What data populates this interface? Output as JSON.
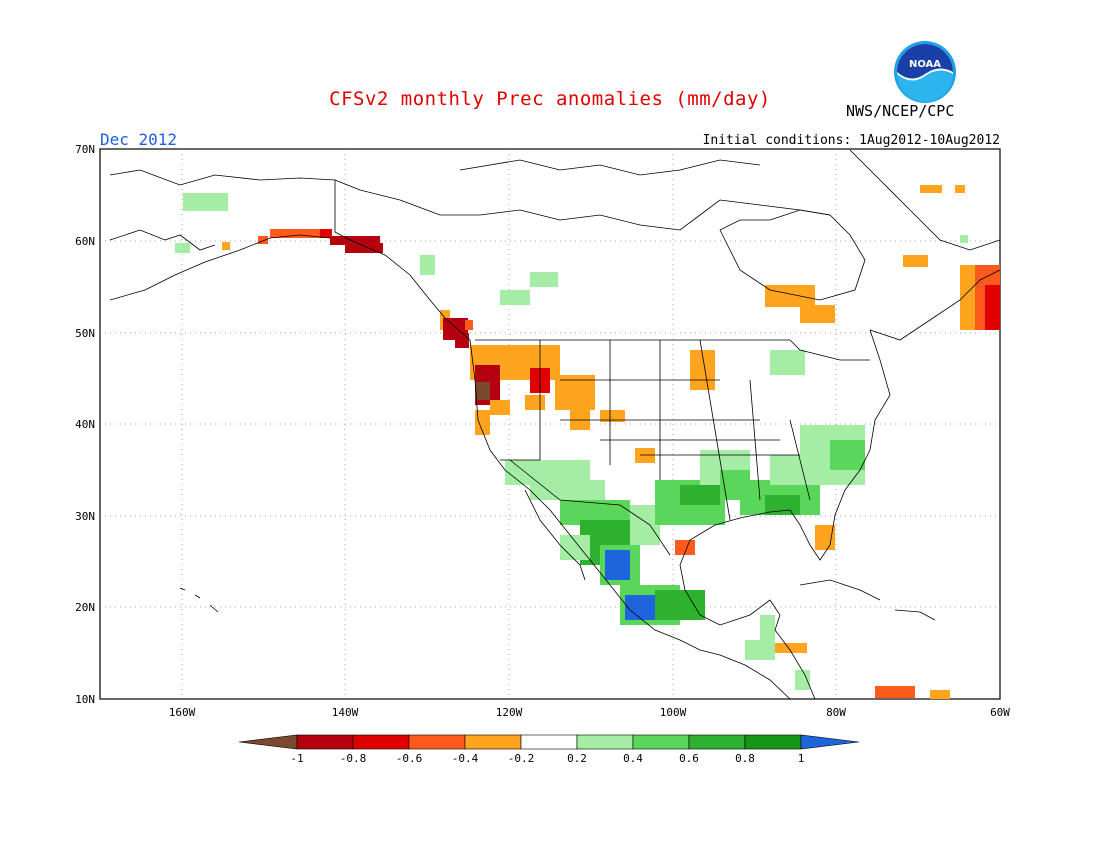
{
  "header": {
    "title": "CFSv2 monthly Prec anomalies (mm/day)",
    "agency": "NWS/NCEP/CPC",
    "month": "Dec 2012",
    "initial_conditions": "Initial conditions: 1Aug2012-10Aug2012",
    "logo_text": "NOAA"
  },
  "axes": {
    "lat_labels": [
      "70N",
      "60N",
      "50N",
      "40N",
      "30N",
      "20N",
      "10N"
    ],
    "lon_labels": [
      "160W",
      "140W",
      "120W",
      "100W",
      "80W",
      "60W"
    ]
  },
  "colorbar": {
    "labels": [
      "-1",
      "-0.8",
      "-0.6",
      "-0.4",
      "-0.2",
      "0.2",
      "0.4",
      "0.6",
      "0.8",
      "1"
    ],
    "colors": [
      "#7b4a2e",
      "#b5000f",
      "#e00000",
      "#ff5a1e",
      "#ffa41e",
      "#ffffff",
      "#a5eda5",
      "#5ad75a",
      "#2eb12e",
      "#169616",
      "#1e64dc"
    ]
  }
}
